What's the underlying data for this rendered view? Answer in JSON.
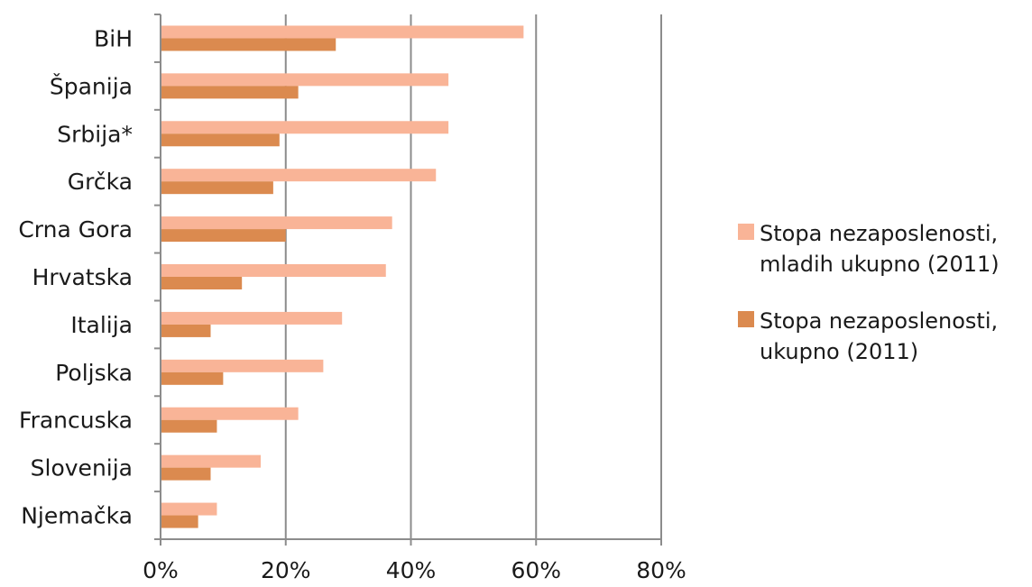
{
  "chart_data": {
    "type": "bar",
    "orientation": "horizontal",
    "categories": [
      "BiH",
      "Španija",
      "Srbija*",
      "Grčka",
      "Crna Gora",
      "Hrvatska",
      "Italija",
      "Poljska",
      "Francuska",
      "Slovenija",
      "Njemačka"
    ],
    "series": [
      {
        "name_lines": [
          "Stopa nezaposlenosti,",
          "mladih ukupno (2011)"
        ],
        "color": "#f9b497",
        "values": [
          58,
          46,
          46,
          44,
          37,
          36,
          29,
          26,
          22,
          16,
          9
        ]
      },
      {
        "name_lines": [
          "Stopa nezaposlenosti,",
          "ukupno (2011)"
        ],
        "color": "#db8a4f",
        "values": [
          28,
          22,
          19,
          18,
          20,
          13,
          8,
          10,
          9,
          8,
          6
        ]
      }
    ],
    "xlim": [
      0,
      80
    ],
    "xticks": [
      0,
      20,
      40,
      60,
      80
    ],
    "xtick_labels": [
      "0%",
      "20%",
      "40%",
      "60%",
      "80%"
    ],
    "grid": "vertical",
    "legend": "right"
  }
}
